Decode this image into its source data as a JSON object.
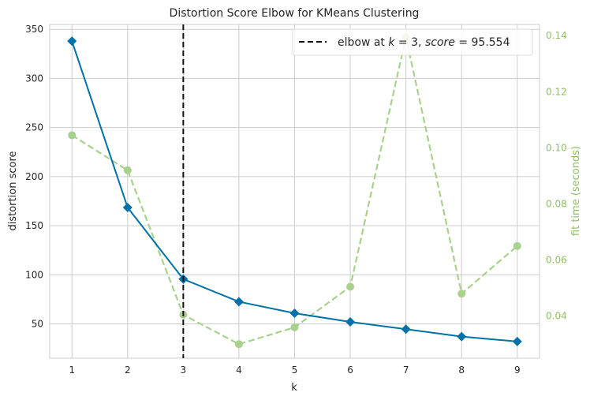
{
  "chart_data": {
    "type": "line",
    "title": "Distortion Score Elbow for KMeans Clustering",
    "xlabel": "k",
    "ylabel": "distortion score",
    "y2label": "fit time (seconds)",
    "x": [
      1,
      2,
      3,
      4,
      5,
      6,
      7,
      8,
      9
    ],
    "xlim": [
      0.6,
      9.4
    ],
    "ylim": [
      15,
      355
    ],
    "y2lim": [
      0.025,
      0.144
    ],
    "yticks": [
      50,
      100,
      150,
      200,
      250,
      300,
      350
    ],
    "y2ticks": [
      "0.04",
      "0.06",
      "0.08",
      "0.10",
      "0.12",
      "0.14"
    ],
    "grid": true,
    "series": [
      {
        "axis": "left",
        "color": "#0072a8",
        "marker": "diamond",
        "values": [
          338,
          168.5,
          95.554,
          72.5,
          60.8,
          52,
          44.5,
          37,
          32
        ]
      },
      {
        "axis": "right",
        "color": "#a9d18e",
        "marker": "circle",
        "dashed": true,
        "values": [
          0.1045,
          0.092,
          0.0405,
          0.03,
          0.036,
          0.0505,
          0.1395,
          0.048,
          0.065
        ]
      }
    ],
    "elbow": {
      "k": 3,
      "score": "95.554",
      "legend_prefix": "elbow at ",
      "legend_k": "k",
      "legend_eq": " = 3, ",
      "legend_score": "score",
      "legend_eq2": " = 95.554"
    },
    "legend_position": "top-right"
  }
}
